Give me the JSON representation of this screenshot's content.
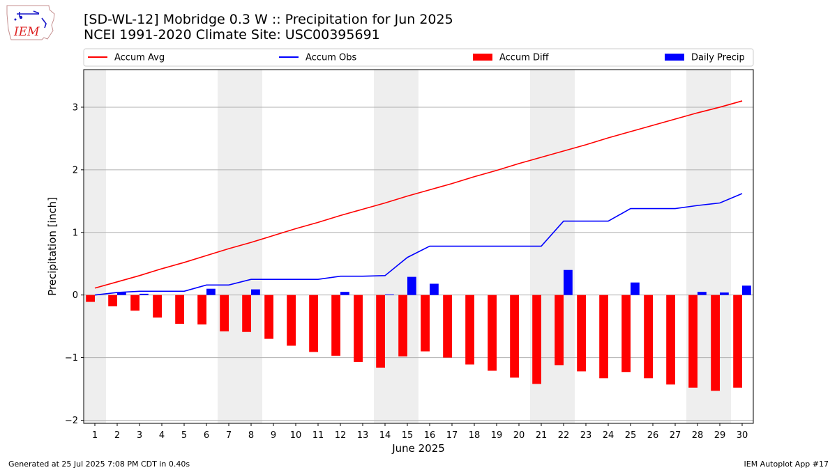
{
  "header": {
    "title_line1": "[SD-WL-12] Mobridge 0.3 W :: Precipitation for Jun 2025",
    "title_line2": "NCEI 1991-2020 Climate Site: USC00395691"
  },
  "logo": {
    "text": "IEM"
  },
  "footer": {
    "generated": "Generated at 25 Jul 2025 7:08 PM CDT in 0.40s",
    "app": "IEM Autoplot App #17"
  },
  "colors": {
    "accum_avg": "#ff0000",
    "accum_obs": "#0000ff",
    "accum_diff": "#ff0000",
    "daily_precip": "#0000ff",
    "weekend_shade": "#eeeeee",
    "grid": "#b0b0b0"
  },
  "chart_data": {
    "type": "bar",
    "xlabel": "June 2025",
    "ylabel": "Precipitation [inch]",
    "ylim": [
      -2.05,
      3.6
    ],
    "yticks": [
      -2,
      -1,
      0,
      1,
      2,
      3
    ],
    "ytick_labels": [
      "−2",
      "−1",
      "0",
      "1",
      "2",
      "3"
    ],
    "grid": "horizontal",
    "legend_position": "top",
    "categories": [
      "1",
      "2",
      "3",
      "4",
      "5",
      "6",
      "7",
      "8",
      "9",
      "10",
      "11",
      "12",
      "13",
      "14",
      "15",
      "16",
      "17",
      "18",
      "19",
      "20",
      "21",
      "22",
      "23",
      "24",
      "25",
      "26",
      "27",
      "28",
      "29",
      "30"
    ],
    "x": [
      1,
      2,
      3,
      4,
      5,
      6,
      7,
      8,
      9,
      10,
      11,
      12,
      13,
      14,
      15,
      16,
      17,
      18,
      19,
      20,
      21,
      22,
      23,
      24,
      25,
      26,
      27,
      28,
      29,
      30
    ],
    "shaded_day_ranges": [
      [
        1,
        1
      ],
      [
        7,
        8
      ],
      [
        14,
        15
      ],
      [
        21,
        22
      ],
      [
        28,
        29
      ]
    ],
    "series": [
      {
        "name": "Accum Avg",
        "kind": "line",
        "values": [
          0.11,
          0.21,
          0.31,
          0.42,
          0.52,
          0.63,
          0.74,
          0.84,
          0.95,
          1.06,
          1.16,
          1.27,
          1.37,
          1.47,
          1.58,
          1.68,
          1.78,
          1.89,
          1.99,
          2.1,
          2.2,
          2.3,
          2.4,
          2.51,
          2.61,
          2.71,
          2.81,
          2.91,
          3.0,
          3.1
        ]
      },
      {
        "name": "Accum Obs",
        "kind": "line",
        "values": [
          0.0,
          0.04,
          0.06,
          0.06,
          0.06,
          0.16,
          0.16,
          0.25,
          0.25,
          0.25,
          0.25,
          0.3,
          0.3,
          0.31,
          0.6,
          0.78,
          0.78,
          0.78,
          0.78,
          0.78,
          0.78,
          1.18,
          1.18,
          1.18,
          1.38,
          1.38,
          1.38,
          1.43,
          1.47,
          1.62
        ]
      },
      {
        "name": "Accum Diff",
        "kind": "bar",
        "values": [
          -0.11,
          -0.18,
          -0.25,
          -0.36,
          -0.46,
          -0.47,
          -0.58,
          -0.59,
          -0.7,
          -0.81,
          -0.91,
          -0.97,
          -1.07,
          -1.16,
          -0.98,
          -0.9,
          -1.0,
          -1.11,
          -1.21,
          -1.32,
          -1.42,
          -1.12,
          -1.22,
          -1.33,
          -1.23,
          -1.33,
          -1.43,
          -1.48,
          -1.53,
          -1.48
        ]
      },
      {
        "name": "Daily Precip",
        "kind": "bar",
        "values": [
          0.0,
          0.04,
          0.02,
          0.0,
          0.0,
          0.1,
          0.0,
          0.09,
          0.0,
          0.0,
          0.0,
          0.05,
          0.0,
          0.01,
          0.29,
          0.18,
          0.0,
          0.0,
          0.0,
          0.0,
          0.0,
          0.4,
          0.0,
          0.0,
          0.2,
          0.0,
          0.0,
          0.05,
          0.04,
          0.15
        ]
      }
    ]
  }
}
